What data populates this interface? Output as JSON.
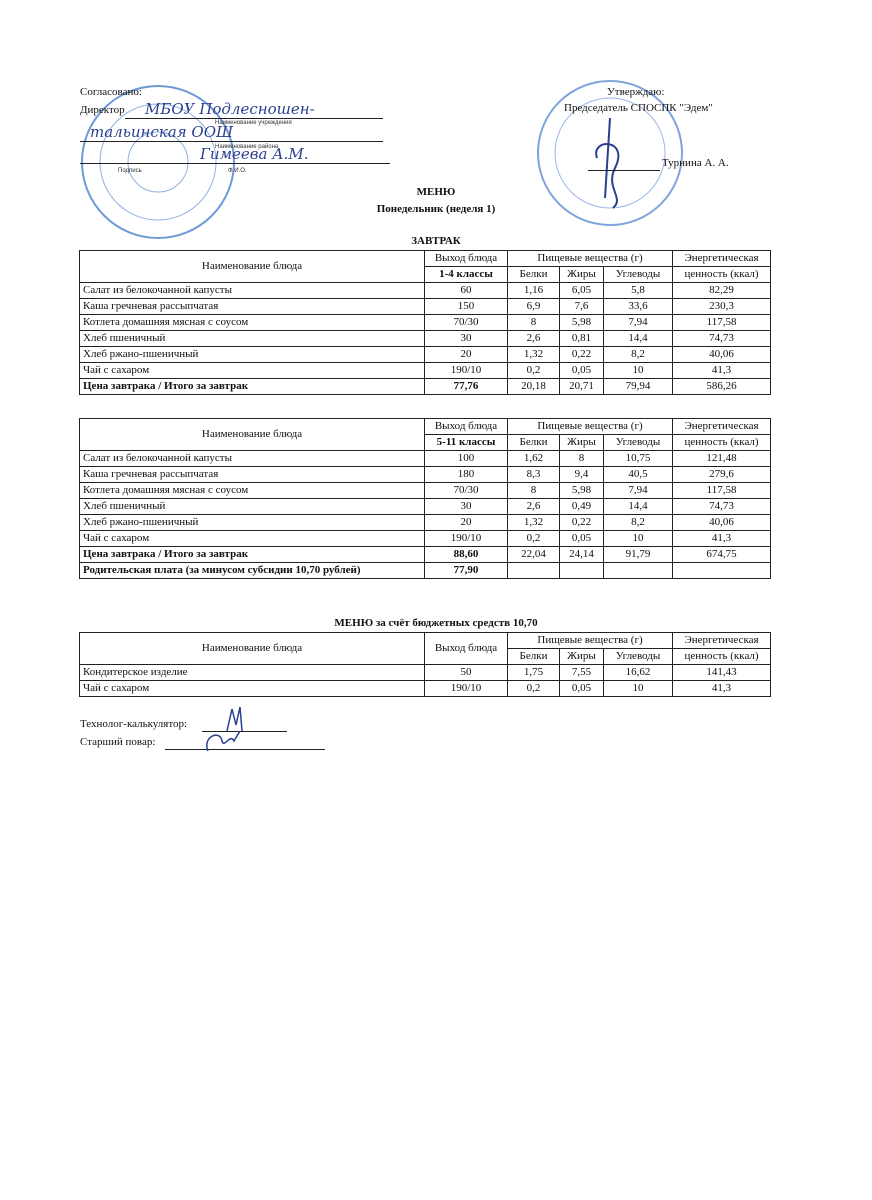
{
  "header": {
    "left": {
      "agreed": "Согласовано:",
      "director": "Директор",
      "institution_handwritten": "МБОУ Подлесношен-",
      "institution_handwritten_2": "тальинская ООШ",
      "institution_caption": "Наименование учреждения",
      "district_caption": "Наименование района",
      "name_handwritten": "Гимеева А.М.",
      "signature_caption": "Подпись",
      "fio_caption": "Ф.И.О."
    },
    "right": {
      "approve": "Утверждаю:",
      "chairman": "Председатель СПОСПК  \"Эдем\"",
      "name": "Турнина А. А."
    },
    "stamp_color": "#4a7fc8"
  },
  "menu_title": "МЕНЮ",
  "day": "Понедельник (неделя 1)",
  "section": "ЗАВТРАК",
  "columns": {
    "name": "Наименование блюда",
    "output": "Выход блюда",
    "nutrients": "Пищевые вещества (г)",
    "protein": "Белки",
    "fat": "Жиры",
    "carbs": "Углеводы",
    "energy_1": "Энергетическая",
    "energy_2": "ценность (ккал)"
  },
  "table1": {
    "group": "1-4 классы",
    "rows": [
      [
        "Салат из белокочанной капусты",
        "60",
        "1,16",
        "6,05",
        "5,8",
        "82,29"
      ],
      [
        "Каша гречневая рассыпчатая",
        "150",
        "6,9",
        "7,6",
        "33,6",
        "230,3"
      ],
      [
        "Котлета домашняя мясная с соусом",
        "70/30",
        "8",
        "5,98",
        "7,94",
        "117,58"
      ],
      [
        "Хлеб пшеничный",
        "30",
        "2,6",
        "0,81",
        "14,4",
        "74,73"
      ],
      [
        "Хлеб ржано-пшеничный",
        "20",
        "1,32",
        "0,22",
        "8,2",
        "40,06"
      ],
      [
        "Чай с сахаром",
        "190/10",
        "0,2",
        "0,05",
        "10",
        "41,3"
      ]
    ],
    "total": [
      "Цена завтрака / Итого за завтрак",
      "77,76",
      "20,18",
      "20,71",
      "79,94",
      "586,26"
    ]
  },
  "table2": {
    "group": "5-11 классы",
    "rows": [
      [
        "Салат из белокочанной капусты",
        "100",
        "1,62",
        "8",
        "10,75",
        "121,48"
      ],
      [
        "Каша гречневая рассыпчатая",
        "180",
        "8,3",
        "9,4",
        "40,5",
        "279,6"
      ],
      [
        "Котлета домашняя мясная с соусом",
        "70/30",
        "8",
        "5,98",
        "7,94",
        "117,58"
      ],
      [
        "Хлеб пшеничный",
        "30",
        "2,6",
        "0,49",
        "14,4",
        "74,73"
      ],
      [
        "Хлеб ржано-пшеничный",
        "20",
        "1,32",
        "0,22",
        "8,2",
        "40,06"
      ],
      [
        "Чай с сахаром",
        "190/10",
        "0,2",
        "0,05",
        "10",
        "41,3"
      ]
    ],
    "total": [
      "Цена завтрака / Итого за завтрак",
      "88,60",
      "22,04",
      "24,14",
      "91,79",
      "674,75"
    ],
    "parent_fee": [
      "Родительская плата (за минусом субсидии 10,70 рублей)",
      "77,90"
    ]
  },
  "budget_title": "МЕНЮ за счёт бюджетных средств 10,70",
  "table3": {
    "rows": [
      [
        "Кондитерское изделие",
        "50",
        "1,75",
        "7,55",
        "16,62",
        "141,43"
      ],
      [
        "Чай с сахаром",
        "190/10",
        "0,2",
        "0,05",
        "10",
        "41,3"
      ]
    ]
  },
  "footer": {
    "technologist": "Технолог-калькулятор:",
    "cook": "Старший повар:"
  }
}
